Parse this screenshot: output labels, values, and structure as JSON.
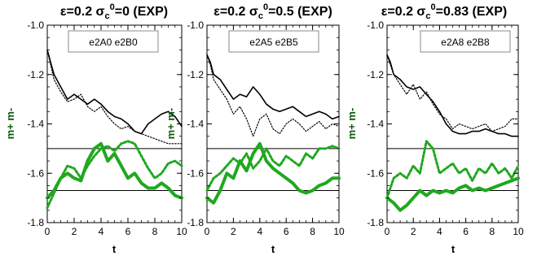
{
  "colors": {
    "black": "#000000",
    "green": "#1fa81f",
    "ylabel": "#0b5a0b"
  },
  "chart_data": [
    {
      "type": "line",
      "title_main": "ε=0.2 σ",
      "title_sub": "c",
      "title_sup": "0",
      "title_tail": "=0 (EXP)",
      "legend_text": "e2A0 e2B0",
      "xlabel": "t",
      "ylabel": "m+ m-",
      "xlim": [
        0,
        10
      ],
      "ylim": [
        -1.8,
        -1.0
      ],
      "xticks": [
        "0",
        "2",
        "4",
        "6",
        "8",
        "10"
      ],
      "yticks": [
        "-1.0",
        "-1.2",
        "-1.4",
        "-1.6",
        "-1.8"
      ],
      "hlines": [
        -1.5,
        -1.67
      ],
      "series": [
        {
          "style": "black-solid",
          "x": [
            0,
            0.25,
            0.5,
            1,
            1.5,
            2,
            2.5,
            3,
            3.5,
            4,
            4.5,
            5,
            5.5,
            6,
            6.5,
            7,
            7.5,
            8,
            8.5,
            9,
            9.5,
            10
          ],
          "y": [
            -1.1,
            -1.15,
            -1.2,
            -1.25,
            -1.3,
            -1.28,
            -1.3,
            -1.32,
            -1.3,
            -1.32,
            -1.35,
            -1.37,
            -1.38,
            -1.4,
            -1.43,
            -1.44,
            -1.4,
            -1.38,
            -1.36,
            -1.35,
            -1.37,
            -1.41
          ]
        },
        {
          "style": "black-dotted",
          "x": [
            0,
            0.25,
            0.5,
            1,
            1.5,
            2,
            2.5,
            3,
            3.5,
            4,
            4.5,
            5,
            5.5,
            6,
            6.5,
            7,
            7.5,
            8,
            8.5,
            9,
            9.5,
            10
          ],
          "y": [
            -1.1,
            -1.16,
            -1.22,
            -1.27,
            -1.31,
            -1.3,
            -1.28,
            -1.33,
            -1.35,
            -1.33,
            -1.37,
            -1.4,
            -1.42,
            -1.41,
            -1.43,
            -1.44,
            -1.45,
            -1.46,
            -1.47,
            -1.48,
            -1.48,
            -1.48
          ]
        },
        {
          "style": "green-solid",
          "x": [
            0,
            0.5,
            1,
            1.5,
            2,
            2.5,
            3,
            3.5,
            4,
            4.5,
            5,
            5.5,
            6,
            6.5,
            7,
            7.5,
            8,
            8.5,
            9,
            9.5,
            10
          ],
          "y": [
            -1.7,
            -1.67,
            -1.62,
            -1.6,
            -1.62,
            -1.63,
            -1.55,
            -1.5,
            -1.48,
            -1.55,
            -1.52,
            -1.57,
            -1.62,
            -1.6,
            -1.64,
            -1.66,
            -1.66,
            -1.64,
            -1.66,
            -1.69,
            -1.7
          ]
        },
        {
          "style": "green-dotted",
          "x": [
            0,
            0.5,
            1,
            1.5,
            2,
            2.5,
            3,
            3.5,
            4,
            4.5,
            5,
            5.5,
            6,
            6.5,
            7,
            7.5,
            8,
            8.5,
            9,
            9.5,
            10
          ],
          "y": [
            -1.74,
            -1.68,
            -1.62,
            -1.57,
            -1.58,
            -1.62,
            -1.57,
            -1.53,
            -1.5,
            -1.49,
            -1.51,
            -1.48,
            -1.47,
            -1.48,
            -1.53,
            -1.58,
            -1.62,
            -1.6,
            -1.56,
            -1.55,
            -1.57
          ]
        }
      ]
    },
    {
      "type": "line",
      "title_main": "ε=0.2 σ",
      "title_sub": "c",
      "title_sup": "0",
      "title_tail": "=0.5 (EXP)",
      "legend_text": "e2A5 e2B5",
      "xlabel": "t",
      "ylabel": "m+ m-",
      "xlim": [
        0,
        10
      ],
      "ylim": [
        -1.8,
        -1.0
      ],
      "xticks": [
        "0",
        "2",
        "4",
        "6",
        "8",
        "10"
      ],
      "yticks": [
        "-1.0",
        "-1.2",
        "-1.4",
        "-1.6",
        "-1.8"
      ],
      "hlines": [
        -1.5,
        -1.67
      ],
      "series": [
        {
          "style": "black-solid",
          "x": [
            0,
            0.25,
            0.5,
            1,
            1.5,
            2,
            2.5,
            3,
            3.5,
            4,
            4.5,
            5,
            5.5,
            6,
            6.5,
            7,
            7.5,
            8,
            8.5,
            9,
            9.5,
            10
          ],
          "y": [
            -1.12,
            -1.15,
            -1.2,
            -1.22,
            -1.26,
            -1.3,
            -1.28,
            -1.29,
            -1.25,
            -1.28,
            -1.32,
            -1.34,
            -1.35,
            -1.34,
            -1.33,
            -1.35,
            -1.37,
            -1.36,
            -1.35,
            -1.36,
            -1.38,
            -1.37
          ]
        },
        {
          "style": "black-dotted",
          "x": [
            0,
            0.25,
            0.5,
            1,
            1.5,
            2,
            2.5,
            3,
            3.5,
            4,
            4.5,
            5,
            5.5,
            6,
            6.5,
            7,
            7.5,
            8,
            8.5,
            9,
            9.5,
            10
          ],
          "y": [
            -1.12,
            -1.16,
            -1.22,
            -1.26,
            -1.3,
            -1.36,
            -1.33,
            -1.38,
            -1.45,
            -1.38,
            -1.36,
            -1.42,
            -1.44,
            -1.4,
            -1.38,
            -1.4,
            -1.43,
            -1.41,
            -1.39,
            -1.42,
            -1.4,
            -1.41
          ]
        },
        {
          "style": "green-solid",
          "x": [
            0,
            0.5,
            1,
            1.5,
            2,
            2.5,
            3,
            3.5,
            4,
            4.5,
            5,
            5.5,
            6,
            6.5,
            7,
            7.5,
            8,
            8.5,
            9,
            9.5,
            10
          ],
          "y": [
            -1.7,
            -1.72,
            -1.67,
            -1.6,
            -1.62,
            -1.55,
            -1.59,
            -1.52,
            -1.48,
            -1.55,
            -1.58,
            -1.6,
            -1.62,
            -1.64,
            -1.67,
            -1.68,
            -1.67,
            -1.65,
            -1.64,
            -1.62,
            -1.62
          ]
        },
        {
          "style": "green-dotted",
          "x": [
            0,
            0.5,
            1,
            1.5,
            2,
            2.5,
            3,
            3.5,
            4,
            4.5,
            5,
            5.5,
            6,
            6.5,
            7,
            7.5,
            8,
            8.5,
            9,
            9.5,
            10
          ],
          "y": [
            -1.67,
            -1.62,
            -1.6,
            -1.57,
            -1.54,
            -1.56,
            -1.52,
            -1.58,
            -1.55,
            -1.5,
            -1.55,
            -1.57,
            -1.53,
            -1.55,
            -1.57,
            -1.52,
            -1.54,
            -1.5,
            -1.5,
            -1.49,
            -1.5
          ]
        }
      ]
    },
    {
      "type": "line",
      "title_main": "ε=0.2 σ",
      "title_sub": "c",
      "title_sup": "0",
      "title_tail": "=0.83 (EXP)",
      "legend_text": "e2A8 e2B8",
      "xlabel": "t",
      "ylabel": "m+ m-",
      "xlim": [
        0,
        10
      ],
      "ylim": [
        -1.8,
        -1.0
      ],
      "xticks": [
        "0",
        "2",
        "4",
        "6",
        "8",
        "10"
      ],
      "yticks": [
        "-1.0",
        "-1.2",
        "-1.4",
        "-1.6",
        "-1.8"
      ],
      "hlines": [
        -1.5,
        -1.67
      ],
      "series": [
        {
          "style": "black-solid",
          "x": [
            0,
            0.25,
            0.5,
            1,
            1.5,
            2,
            2.5,
            3,
            3.5,
            4,
            4.5,
            5,
            5.5,
            6,
            6.5,
            7,
            7.5,
            8,
            8.5,
            9,
            9.5,
            10
          ],
          "y": [
            -1.12,
            -1.15,
            -1.2,
            -1.22,
            -1.25,
            -1.26,
            -1.25,
            -1.28,
            -1.31,
            -1.35,
            -1.4,
            -1.43,
            -1.44,
            -1.44,
            -1.43,
            -1.43,
            -1.42,
            -1.43,
            -1.44,
            -1.44,
            -1.45,
            -1.45
          ]
        },
        {
          "style": "black-dotted",
          "x": [
            0,
            0.25,
            0.5,
            1,
            1.5,
            2,
            2.5,
            3,
            3.5,
            4,
            4.5,
            5,
            5.5,
            6,
            6.5,
            7,
            7.5,
            8,
            8.5,
            9,
            9.5,
            10
          ],
          "y": [
            -1.12,
            -1.16,
            -1.2,
            -1.24,
            -1.28,
            -1.24,
            -1.3,
            -1.27,
            -1.32,
            -1.36,
            -1.38,
            -1.42,
            -1.4,
            -1.41,
            -1.42,
            -1.41,
            -1.4,
            -1.43,
            -1.42,
            -1.41,
            -1.38,
            -1.38
          ]
        },
        {
          "style": "green-solid",
          "x": [
            0,
            0.5,
            1,
            1.5,
            2,
            2.5,
            3,
            3.5,
            4,
            4.5,
            5,
            5.5,
            6,
            6.5,
            7,
            7.5,
            8,
            8.5,
            9,
            9.5,
            10
          ],
          "y": [
            -1.7,
            -1.72,
            -1.75,
            -1.73,
            -1.7,
            -1.67,
            -1.69,
            -1.67,
            -1.68,
            -1.67,
            -1.68,
            -1.66,
            -1.65,
            -1.67,
            -1.66,
            -1.67,
            -1.66,
            -1.65,
            -1.64,
            -1.63,
            -1.62
          ]
        },
        {
          "style": "green-dotted",
          "x": [
            0,
            0.5,
            1,
            1.5,
            2,
            2.5,
            3,
            3.5,
            4,
            4.5,
            5,
            5.5,
            6,
            6.5,
            7,
            7.5,
            8,
            8.5,
            9,
            9.5,
            10
          ],
          "y": [
            -1.7,
            -1.62,
            -1.6,
            -1.62,
            -1.57,
            -1.6,
            -1.47,
            -1.5,
            -1.6,
            -1.58,
            -1.56,
            -1.6,
            -1.58,
            -1.63,
            -1.58,
            -1.6,
            -1.56,
            -1.6,
            -1.58,
            -1.62,
            -1.57
          ]
        }
      ]
    }
  ]
}
